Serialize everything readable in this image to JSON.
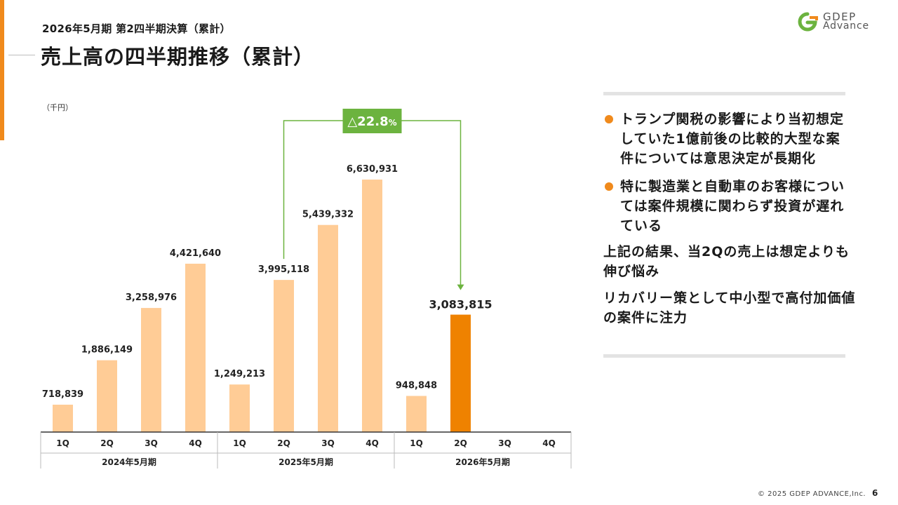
{
  "header": {
    "subtitle": "2026年5月期 第2四半期決算（累計）",
    "title": "売上高の四半期推移（累計）"
  },
  "logo": {
    "line1": "GDEP",
    "line2": "Advance"
  },
  "chart_data": {
    "type": "bar",
    "unit_label": "（千円）",
    "categories": [
      "1Q",
      "2Q",
      "3Q",
      "4Q",
      "1Q",
      "2Q",
      "3Q",
      "4Q",
      "1Q",
      "2Q",
      "3Q",
      "4Q"
    ],
    "groups": [
      {
        "label": "2024年5月期"
      },
      {
        "label": "2025年5月期"
      },
      {
        "label": "2026年5月期"
      }
    ],
    "values": [
      718839,
      1886149,
      3258976,
      4421640,
      1249213,
      3995118,
      5439332,
      6630931,
      948848,
      3083815,
      null,
      null
    ],
    "value_labels": [
      "718,839",
      "1,886,149",
      "3,258,976",
      "4,421,640",
      "1,249,213",
      "3,995,118",
      "5,439,332",
      "6,630,931",
      "948,848",
      "3,083,815",
      "",
      ""
    ],
    "highlight_index": 9,
    "colors": {
      "bar": "#ffcc96",
      "highlight": "#ef8200",
      "annotation": "#6cb33f"
    },
    "ylim": [
      0,
      7000000
    ],
    "annotation": {
      "text": "△22.8",
      "suffix": "%",
      "from_index": 5,
      "to_index": 9
    },
    "title": "",
    "xlabel": "",
    "ylabel": ""
  },
  "panel": {
    "bullets": [
      "トランプ関税の影響により当初想定していた1億前後の比較的大型な案件については意思決定が長期化",
      "特に製造業と自動車のお客様については案件規模に関わらず投資が遅れている"
    ],
    "paragraphs": [
      "上記の結果、当2Qの売上は想定よりも伸び悩み",
      "リカバリー策として中小型で高付加価値の案件に注力"
    ]
  },
  "footer": {
    "copyright": "© 2025 GDEP ADVANCE,Inc.",
    "page": "6"
  }
}
